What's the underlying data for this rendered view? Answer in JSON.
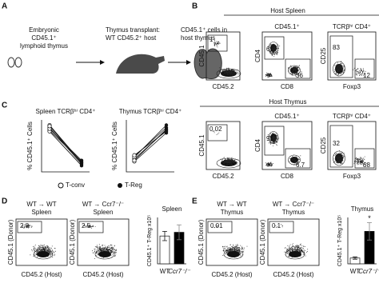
{
  "panels": {
    "A": {
      "label": "A",
      "donor": [
        "Embryonic",
        "CD45.1⁺",
        "lymphoid thymus"
      ],
      "transplant": [
        "Thymus transplant:",
        "WT CD45.2⁺ host"
      ],
      "result": [
        "CD45.1⁺ cells in",
        "host thymus"
      ]
    },
    "B": {
      "label": "B",
      "sections": [
        {
          "title": "Host Spleen",
          "plots": [
            {
              "gates": [
                "1"
              ],
              "x": "CD45.2",
              "y": "CD45.1"
            },
            {
              "title": "CD45.1⁺",
              "gates": [
                "61",
                "36"
              ],
              "x": "CD8",
              "y": "CD4"
            },
            {
              "title": "TCRβʰⁱ CD4⁺",
              "gates": [
                "83",
                "12"
              ],
              "x": "Foxp3",
              "y": "CD25"
            }
          ]
        },
        {
          "title": "Host Thymus",
          "plots": [
            {
              "gates": [
                "0.02"
              ],
              "x": "CD45.2",
              "y": "CD45.1"
            },
            {
              "title": "CD45.1⁺",
              "gates": [
                "91",
                "6.7"
              ],
              "x": "CD8",
              "y": "CD4"
            },
            {
              "title": "TCRβʰⁱ CD4⁺",
              "gates": [
                "32",
                "68"
              ],
              "x": "Foxp3",
              "y": "CD25"
            }
          ]
        }
      ]
    },
    "C": {
      "label": "C",
      "legend": [
        "T-conv",
        "T-Reg"
      ],
      "charts": [
        {
          "type": "line",
          "title": "Spleen TCRβʰⁱ CD4⁺",
          "ylabel": "% CD45.1⁺ Cells",
          "ylim": [
            0,
            1
          ],
          "values": [
            [
              0.85,
              0.15
            ],
            [
              0.8,
              0.2
            ],
            [
              0.9,
              0.18
            ],
            [
              0.78,
              0.12
            ],
            [
              0.83,
              0.22
            ],
            [
              0.88,
              0.17
            ]
          ]
        },
        {
          "type": "line",
          "title": "Thymus TCRβʰⁱ CD4⁺",
          "ylabel": "% CD45.1⁺ Cells",
          "ylim": [
            0,
            1
          ],
          "values": [
            [
              0.25,
              0.8
            ],
            [
              0.3,
              0.85
            ],
            [
              0.2,
              0.75
            ],
            [
              0.28,
              0.9
            ],
            [
              0.22,
              0.82
            ],
            [
              0.32,
              0.78
            ]
          ]
        }
      ]
    },
    "D": {
      "label": "D",
      "plots": [
        {
          "title": [
            "WT → WT",
            "Spleen"
          ],
          "gate": "2.8",
          "x": "CD45.2 (Host)",
          "y": "CD45.1 (Donor)"
        },
        {
          "title": [
            "WT → Ccr7⁻/⁻",
            "Spleen"
          ],
          "gate": "2.5",
          "x": "CD45.2 (Host)",
          "y": "CD45.1 (Donor)"
        }
      ],
      "bar": {
        "type": "bar",
        "title": "Spleen",
        "ylabel": "CD45.1⁺ T-Reg x10⁵",
        "categories": [
          "WT",
          "Ccr7⁻/⁻"
        ],
        "values": [
          3.0,
          3.4
        ],
        "errors": [
          0.5,
          0.8
        ],
        "colors": [
          "#ffffff",
          "#000000"
        ],
        "ylim": [
          0,
          5
        ]
      }
    },
    "E": {
      "label": "E",
      "plots": [
        {
          "title": [
            "WT → WT",
            "Thymus"
          ],
          "gate": "0.01",
          "x": "CD45.2 (Host)",
          "y": "CD45.1 (Donor)"
        },
        {
          "title": [
            "WT → Ccr7⁻/⁻",
            "Thymus"
          ],
          "gate": "0.1",
          "x": "CD45.2 (Host)",
          "y": "CD45.1 (Donor)"
        }
      ],
      "bar": {
        "type": "bar",
        "title": "Thymus",
        "ylabel": "CD45.1⁺ T-Reg x10⁵",
        "categories": [
          "WT",
          "Ccr7⁻/⁻"
        ],
        "values": [
          1.0,
          5.6
        ],
        "errors": [
          0.2,
          1.5
        ],
        "colors": [
          "#ffffff",
          "#000000"
        ],
        "ylim": [
          0,
          8
        ],
        "annotation": "*"
      }
    }
  }
}
